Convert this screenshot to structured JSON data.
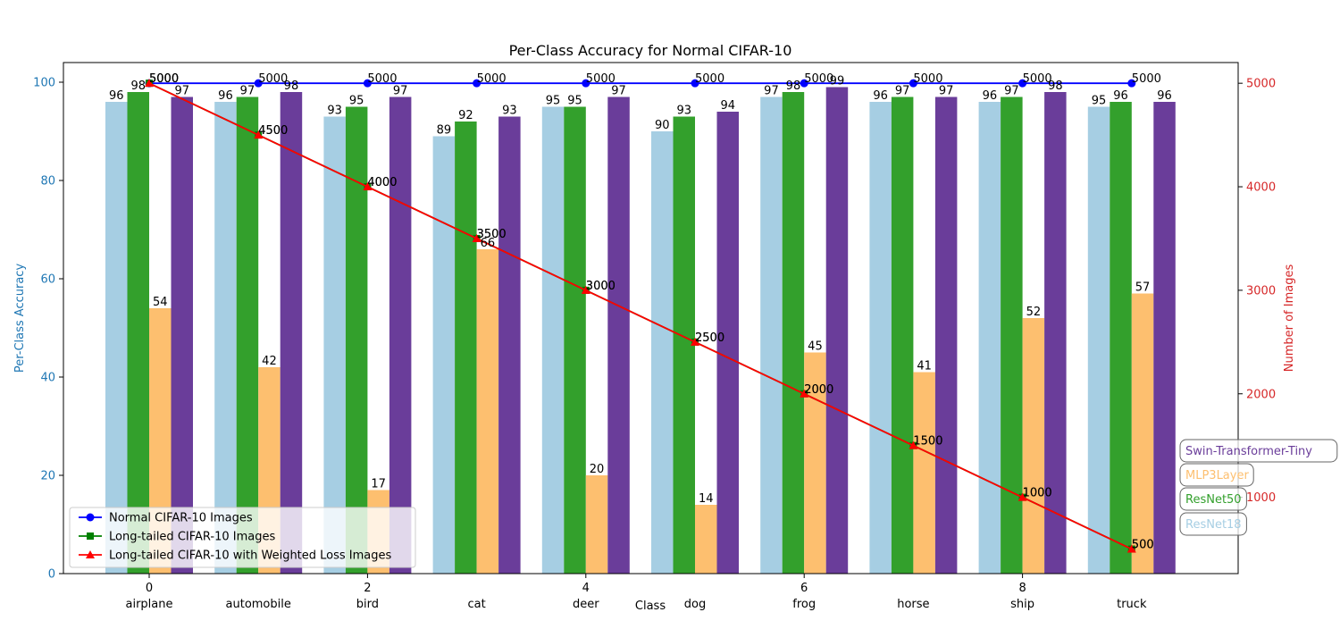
{
  "chart_data": {
    "type": "bar",
    "title": "Per-Class Accuracy for Normal CIFAR-10",
    "xlabel": "Class",
    "ylabel_left": "Per-Class Accuracy",
    "ylabel_right": "Number of Images",
    "x_ticks": [
      "0",
      "2",
      "4",
      "6",
      "8"
    ],
    "categories": [
      "airplane",
      "automobile",
      "bird",
      "cat",
      "deer",
      "dog",
      "frog",
      "horse",
      "ship",
      "truck"
    ],
    "ylim_left": [
      0,
      104
    ],
    "yticks_left": [
      0,
      20,
      40,
      60,
      80,
      100
    ],
    "ylim_right": [
      263,
      5200
    ],
    "yticks_right": [
      1000,
      2000,
      3000,
      4000,
      5000
    ],
    "grid": false,
    "series": [
      {
        "name": "ResNet18",
        "color": "#a6cee3",
        "values": [
          96,
          96,
          93,
          89,
          95,
          90,
          97,
          96,
          96,
          95
        ]
      },
      {
        "name": "ResNet50",
        "color": "#33a02c",
        "values": [
          98,
          97,
          95,
          92,
          95,
          93,
          98,
          97,
          97,
          96
        ]
      },
      {
        "name": "MLP3Layer",
        "color": "#fdbf6f",
        "values": [
          54,
          42,
          17,
          66,
          20,
          14,
          45,
          41,
          52,
          57
        ]
      },
      {
        "name": "Swin-Transformer-Tiny",
        "color": "#6a3d9a",
        "values": [
          97,
          98,
          97,
          93,
          97,
          94,
          99,
          97,
          98,
          96
        ]
      }
    ],
    "image_count_series": [
      {
        "name": "Normal CIFAR-10 Images",
        "color": "#0000ff",
        "marker": "circle",
        "values": [
          5000,
          5000,
          5000,
          5000,
          5000,
          5000,
          5000,
          5000,
          5000,
          5000
        ]
      },
      {
        "name": "Long-tailed CIFAR-10 Images",
        "color": "#008000",
        "marker": "square",
        "values": [
          5000,
          4500,
          4000,
          3500,
          3000,
          2500,
          2000,
          1500,
          1000,
          500
        ]
      },
      {
        "name": "Long-tailed CIFAR-10 with Weighted Loss Images",
        "color": "#ff0000",
        "marker": "triangle",
        "values": [
          5000,
          4500,
          4000,
          3500,
          3000,
          2500,
          2000,
          1500,
          1000,
          500
        ]
      }
    ],
    "legend_placement": "lower-left",
    "model_legend_placement": "lower-right"
  },
  "colors": {
    "left_axis": "#1f77b4",
    "right_axis": "#d62728"
  }
}
